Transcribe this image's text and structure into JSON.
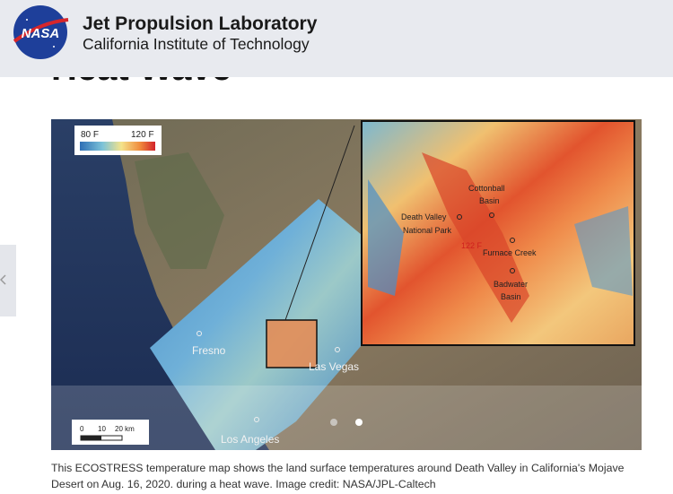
{
  "header": {
    "logo": "NASA",
    "title": "Jet Propulsion Laboratory",
    "subtitle": "California Institute of Technology"
  },
  "article": {
    "heading": "Heat Wave"
  },
  "figure": {
    "legend": {
      "min": "80 F",
      "max": "120 F"
    },
    "inset_labels": [
      "Cottonball",
      "Basin",
      "Death Valley",
      "National Park",
      "122 F",
      "Furnace Creek",
      "Badwater",
      "Basin"
    ],
    "map_labels": [
      "Fresno",
      "Las Vegas",
      "Los Angeles"
    ],
    "scale": [
      "0",
      "10",
      "20 km"
    ],
    "caption": "This ECOSTRESS temperature map shows the land surface temperatures around Death Valley in California's Mojave Desert on Aug. 16, 2020. during a heat wave. Image credit: NASA/JPL-Caltech"
  }
}
